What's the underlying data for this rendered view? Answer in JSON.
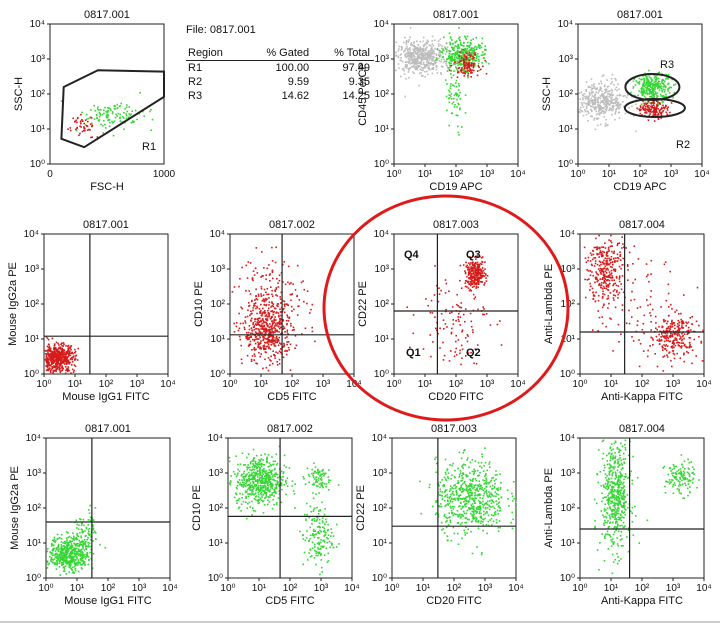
{
  "colors": {
    "red": "#d61b1b",
    "green": "#34d634",
    "gray": "#bcbcbc",
    "axis": "#222222",
    "highlight": "#e01a1a"
  },
  "summary_table": {
    "file_label": "File: 0817.001",
    "headers": [
      "Region",
      "% Gated",
      "% Total"
    ],
    "rows": [
      [
        "R1",
        "100.00",
        "97.49"
      ],
      [
        "R2",
        "9.59",
        "9.35"
      ],
      [
        "R3",
        "14.62",
        "14.25"
      ]
    ]
  },
  "chart_data": [
    {
      "type": "scatter",
      "id": "p1",
      "title": "0817.001",
      "xlabel": "FSC-H",
      "ylabel": "SSC-H",
      "x_scale": "linear",
      "x_ticks": [
        "0",
        "1000"
      ],
      "y_scale": "log",
      "y_ticks": [
        "10⁰",
        "10¹",
        "10²",
        "10³",
        "10⁴"
      ],
      "gates": [
        {
          "label": "R1",
          "shape": "polygon"
        }
      ],
      "clusters": [
        {
          "color": "green",
          "cx": 0.55,
          "cy": 0.35,
          "sx": 0.14,
          "sy": 0.05,
          "n": 120
        },
        {
          "color": "red",
          "cx": 0.28,
          "cy": 0.28,
          "sx": 0.05,
          "sy": 0.04,
          "n": 45
        }
      ]
    },
    {
      "type": "scatter",
      "id": "p3",
      "title": "0817.001",
      "xlabel": "CD19 APC",
      "ylabel": "CD45 PerCP",
      "x_scale": "log",
      "x_ticks": [
        "10⁰",
        "10¹",
        "10²",
        "10³",
        "10⁴"
      ],
      "y_scale": "log",
      "y_ticks": [
        "10⁰",
        "10¹",
        "10²",
        "10³",
        "10⁴"
      ],
      "clusters": [
        {
          "color": "gray",
          "cx": 0.22,
          "cy": 0.77,
          "sx": 0.11,
          "sy": 0.06,
          "n": 500
        },
        {
          "color": "green",
          "cx": 0.55,
          "cy": 0.78,
          "sx": 0.08,
          "sy": 0.06,
          "n": 360
        },
        {
          "color": "green",
          "cx": 0.48,
          "cy": 0.45,
          "sx": 0.04,
          "sy": 0.12,
          "n": 60
        },
        {
          "color": "red",
          "cx": 0.58,
          "cy": 0.72,
          "sx": 0.05,
          "sy": 0.04,
          "n": 110
        }
      ]
    },
    {
      "type": "scatter",
      "id": "p4",
      "title": "0817.001",
      "xlabel": "CD19 APC",
      "ylabel": "SSC-H",
      "x_scale": "log",
      "x_ticks": [
        "10⁰",
        "10¹",
        "10²",
        "10³",
        "10⁴"
      ],
      "y_scale": "log",
      "y_ticks": [
        "10⁰",
        "10¹",
        "10²",
        "10³",
        "10⁴"
      ],
      "gates": [
        {
          "label": "R3",
          "shape": "ellipse"
        },
        {
          "label": "R2",
          "shape": "ellipse"
        }
      ],
      "clusters": [
        {
          "color": "gray",
          "cx": 0.18,
          "cy": 0.45,
          "sx": 0.11,
          "sy": 0.07,
          "n": 420
        },
        {
          "color": "green",
          "cx": 0.6,
          "cy": 0.55,
          "sx": 0.07,
          "sy": 0.05,
          "n": 280
        },
        {
          "color": "red",
          "cx": 0.6,
          "cy": 0.4,
          "sx": 0.06,
          "sy": 0.03,
          "n": 150
        }
      ]
    },
    {
      "type": "scatter",
      "id": "p5",
      "title": "0817.001",
      "xlabel": "Mouse IgG1 FITC",
      "ylabel": "Mouse IgG2a PE",
      "x_scale": "log",
      "x_ticks": [
        "10⁰",
        "10¹",
        "10²",
        "10³",
        "10⁴"
      ],
      "y_scale": "log",
      "y_ticks": [
        "10⁰",
        "10¹",
        "10²",
        "10³",
        "10⁴"
      ],
      "quadrant": [
        0.37,
        0.27
      ],
      "clusters": [
        {
          "color": "red",
          "cx": 0.1,
          "cy": 0.12,
          "sx": 0.07,
          "sy": 0.05,
          "n": 520
        }
      ]
    },
    {
      "type": "scatter",
      "id": "p6",
      "title": "0817.002",
      "xlabel": "CD5 FITC",
      "ylabel": "CD10 PE",
      "x_scale": "log",
      "x_ticks": [
        "10⁰",
        "10¹",
        "10²",
        "10³",
        "10⁴"
      ],
      "y_scale": "log",
      "y_ticks": [
        "10⁰",
        "10¹",
        "10²",
        "10³",
        "10⁴"
      ],
      "quadrant": [
        0.42,
        0.28
      ],
      "clusters": [
        {
          "color": "red",
          "cx": 0.3,
          "cy": 0.3,
          "sx": 0.1,
          "sy": 0.11,
          "n": 480
        },
        {
          "color": "red",
          "cx": 0.32,
          "cy": 0.55,
          "sx": 0.15,
          "sy": 0.15,
          "n": 180
        }
      ]
    },
    {
      "type": "scatter",
      "id": "p7",
      "title": "0817.003",
      "xlabel": "CD20 FITC",
      "ylabel": "CD22 PE",
      "x_scale": "log",
      "x_ticks": [
        "10⁰",
        "10¹",
        "10²",
        "10³",
        "10⁴"
      ],
      "y_scale": "log",
      "y_ticks": [
        "10⁰",
        "10¹",
        "10²",
        "10³",
        "10⁴"
      ],
      "quadrant": [
        0.35,
        0.45
      ],
      "quadrant_labels": [
        "Q4",
        "Q3",
        "Q1",
        "Q2"
      ],
      "highlight": "circle",
      "clusters": [
        {
          "color": "red",
          "cx": 0.65,
          "cy": 0.72,
          "sx": 0.04,
          "sy": 0.05,
          "n": 260
        },
        {
          "color": "red",
          "cx": 0.48,
          "cy": 0.4,
          "sx": 0.14,
          "sy": 0.16,
          "n": 120
        }
      ]
    },
    {
      "type": "scatter",
      "id": "p8",
      "title": "0817.004",
      "xlabel": "Anti-Kappa FITC",
      "ylabel": "Anti-Lambda PE",
      "x_scale": "log",
      "x_ticks": [
        "10⁰",
        "10¹",
        "10²",
        "10³",
        "10⁴"
      ],
      "y_scale": "log",
      "y_ticks": [
        "10⁰",
        "10¹",
        "10²",
        "10³",
        "10⁴"
      ],
      "quadrant": [
        0.36,
        0.3
      ],
      "clusters": [
        {
          "color": "red",
          "cx": 0.2,
          "cy": 0.75,
          "sx": 0.07,
          "sy": 0.14,
          "n": 320
        },
        {
          "color": "red",
          "cx": 0.75,
          "cy": 0.28,
          "sx": 0.1,
          "sy": 0.08,
          "n": 260
        },
        {
          "color": "red",
          "cx": 0.45,
          "cy": 0.45,
          "sx": 0.2,
          "sy": 0.2,
          "n": 80
        }
      ]
    },
    {
      "type": "scatter",
      "id": "p9",
      "title": "0817.001",
      "xlabel": "Mouse IgG1 FITC",
      "ylabel": "Mouse IgG2a PE",
      "x_scale": "log",
      "x_ticks": [
        "10⁰",
        "10¹",
        "10²",
        "10³",
        "10⁴"
      ],
      "y_scale": "log",
      "y_ticks": [
        "10⁰",
        "10¹",
        "10²",
        "10³",
        "10⁴"
      ],
      "quadrant": [
        0.37,
        0.4
      ],
      "clusters": [
        {
          "color": "green",
          "cx": 0.18,
          "cy": 0.18,
          "sx": 0.08,
          "sy": 0.06,
          "n": 500
        },
        {
          "color": "green",
          "cx": 0.32,
          "cy": 0.33,
          "sx": 0.05,
          "sy": 0.08,
          "n": 80
        }
      ]
    },
    {
      "type": "scatter",
      "id": "p10",
      "title": "0817.002",
      "xlabel": "CD5 FITC",
      "ylabel": "CD10 PE",
      "x_scale": "log",
      "x_ticks": [
        "10⁰",
        "10¹",
        "10²",
        "10³",
        "10⁴"
      ],
      "y_scale": "log",
      "y_ticks": [
        "10⁰",
        "10¹",
        "10²",
        "10³",
        "10⁴"
      ],
      "quadrant": [
        0.42,
        0.44
      ],
      "clusters": [
        {
          "color": "green",
          "cx": 0.25,
          "cy": 0.7,
          "sx": 0.1,
          "sy": 0.09,
          "n": 560
        },
        {
          "color": "green",
          "cx": 0.72,
          "cy": 0.3,
          "sx": 0.06,
          "sy": 0.12,
          "n": 160
        },
        {
          "color": "green",
          "cx": 0.72,
          "cy": 0.72,
          "sx": 0.05,
          "sy": 0.05,
          "n": 80
        }
      ]
    },
    {
      "type": "scatter",
      "id": "p11",
      "title": "0817.003",
      "xlabel": "CD20 FITC",
      "ylabel": "CD22 PE",
      "x_scale": "log",
      "x_ticks": [
        "10⁰",
        "10¹",
        "10²",
        "10³",
        "10⁴"
      ],
      "y_scale": "log",
      "y_ticks": [
        "10⁰",
        "10¹",
        "10²",
        "10³",
        "10⁴"
      ],
      "quadrant": [
        0.37,
        0.37
      ],
      "clusters": [
        {
          "color": "green",
          "cx": 0.63,
          "cy": 0.58,
          "sx": 0.14,
          "sy": 0.13,
          "n": 620
        }
      ]
    },
    {
      "type": "scatter",
      "id": "p12",
      "title": "0817.004",
      "xlabel": "Anti-Kappa FITC",
      "ylabel": "Anti-Lambda PE",
      "x_scale": "log",
      "x_ticks": [
        "10⁰",
        "10¹",
        "10²",
        "10³",
        "10⁴"
      ],
      "y_scale": "log",
      "y_ticks": [
        "10⁰",
        "10¹",
        "10²",
        "10³",
        "10⁴"
      ],
      "quadrant": [
        0.4,
        0.35
      ],
      "clusters": [
        {
          "color": "green",
          "cx": 0.28,
          "cy": 0.6,
          "sx": 0.06,
          "sy": 0.2,
          "n": 520
        },
        {
          "color": "green",
          "cx": 0.8,
          "cy": 0.72,
          "sx": 0.06,
          "sy": 0.06,
          "n": 120
        }
      ]
    }
  ]
}
